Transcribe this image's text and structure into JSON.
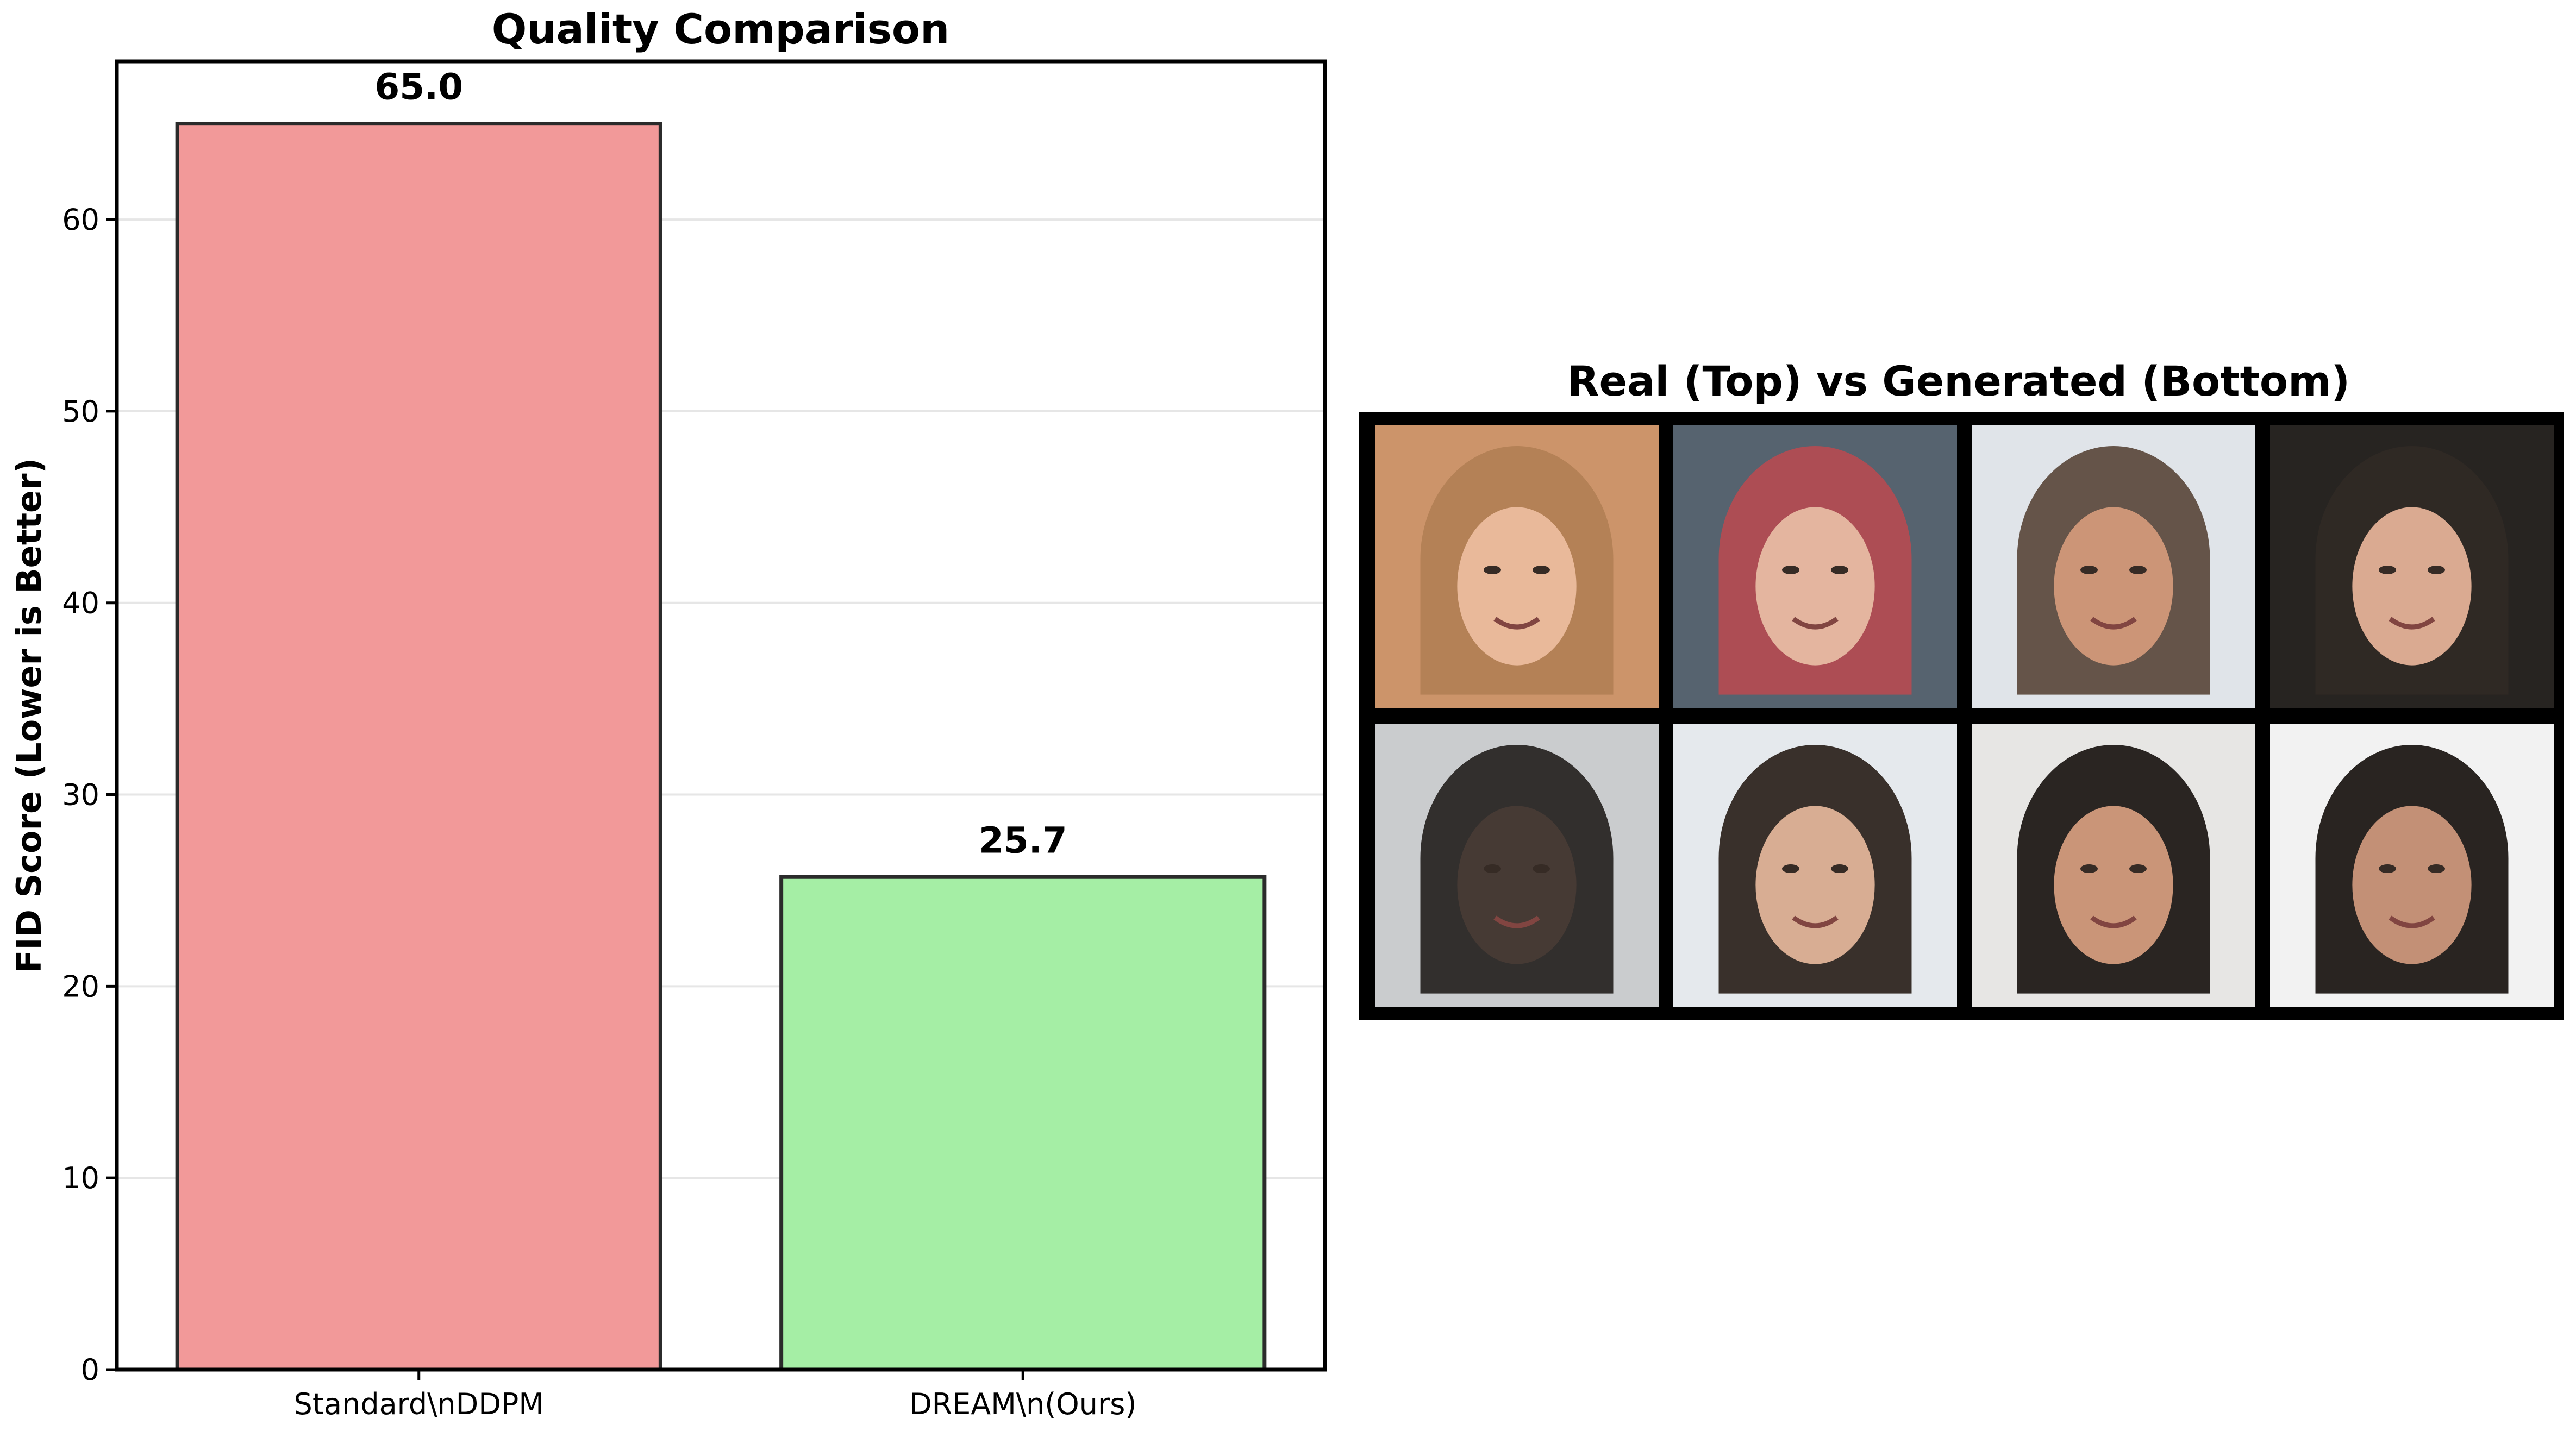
{
  "chart_data": [
    {
      "type": "bar",
      "title": "Quality Comparison",
      "xlabel": "",
      "ylabel": "FID Score (Lower is Better)",
      "categories": [
        "Standard\\nDDPM",
        "DREAM\\n(Ours)"
      ],
      "values": [
        65.0,
        25.7
      ],
      "value_labels": [
        "65.0",
        "25.7"
      ],
      "colors": [
        "#f29999",
        "#a5eea5"
      ],
      "edge_color": "#2b2b2b",
      "ylim": [
        0,
        68.25
      ],
      "yticks": [
        0,
        10,
        20,
        30,
        40,
        50,
        60
      ],
      "ytick_labels": [
        "0",
        "10",
        "20",
        "30",
        "40",
        "50",
        "60"
      ],
      "grid": "horizontal",
      "legend": "none"
    }
  ],
  "image_grid": {
    "title": "Real (Top) vs Generated (Bottom)",
    "rows": [
      {
        "row": "real",
        "cells": [
          {
            "icon": "face-photo",
            "bg": "#c98e61",
            "hair": "#b07a4c",
            "skin": "#e8b594"
          },
          {
            "icon": "face-photo",
            "bg": "#4c5a66",
            "hair": "#a8424a",
            "skin": "#e3b19a"
          },
          {
            "icon": "face-photo",
            "bg": "#dfe3e8",
            "hair": "#5c4a3e",
            "skin": "#c98f6f"
          },
          {
            "icon": "face-photo",
            "bg": "#1a1714",
            "hair": "#231c17",
            "skin": "#d8a58b"
          }
        ]
      },
      {
        "row": "generated",
        "cells": [
          {
            "icon": "face-photo",
            "bg": "#c7c9cb",
            "hair": "#262220",
            "skin": "#3b2e28"
          },
          {
            "icon": "face-photo",
            "bg": "#e4e8ec",
            "hair": "#2d241e",
            "skin": "#d6a88d"
          },
          {
            "icon": "face-photo",
            "bg": "#e6e5e3",
            "hair": "#1d1815",
            "skin": "#c78f70"
          },
          {
            "icon": "face-photo",
            "bg": "#f2f2f2",
            "hair": "#1c1714",
            "skin": "#c08a6e"
          }
        ]
      }
    ]
  }
}
